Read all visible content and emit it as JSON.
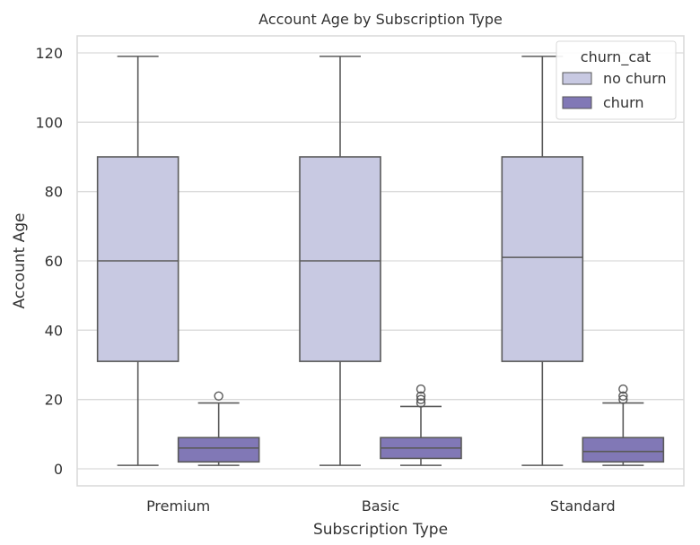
{
  "chart_data": {
    "type": "box",
    "title": "Account Age by Subscription Type",
    "xlabel": "Subscription Type",
    "ylabel": "Account Age",
    "ylim": [
      -5,
      125
    ],
    "yticks": [
      0,
      20,
      40,
      60,
      80,
      100,
      120
    ],
    "categories": [
      "Premium",
      "Basic",
      "Standard"
    ],
    "grid": true,
    "legend": {
      "title": "churn_cat",
      "position": "top-right"
    },
    "series": [
      {
        "name": "no churn",
        "color": "#c8c9e2",
        "boxes": [
          {
            "whisker_low": 1,
            "q1": 31,
            "median": 60,
            "q3": 90,
            "whisker_high": 119,
            "outliers": []
          },
          {
            "whisker_low": 1,
            "q1": 31,
            "median": 60,
            "q3": 90,
            "whisker_high": 119,
            "outliers": []
          },
          {
            "whisker_low": 1,
            "q1": 31,
            "median": 61,
            "q3": 90,
            "whisker_high": 119,
            "outliers": []
          }
        ]
      },
      {
        "name": "churn",
        "color": "#8178b6",
        "boxes": [
          {
            "whisker_low": 1,
            "q1": 2,
            "median": 6,
            "q3": 9,
            "whisker_high": 19,
            "outliers": [
              21
            ]
          },
          {
            "whisker_low": 1,
            "q1": 3,
            "median": 6,
            "q3": 9,
            "whisker_high": 18,
            "outliers": [
              19,
              20,
              21,
              23
            ]
          },
          {
            "whisker_low": 1,
            "q1": 2,
            "median": 5,
            "q3": 9,
            "whisker_high": 19,
            "outliers": [
              20,
              21,
              23
            ]
          }
        ]
      }
    ]
  }
}
